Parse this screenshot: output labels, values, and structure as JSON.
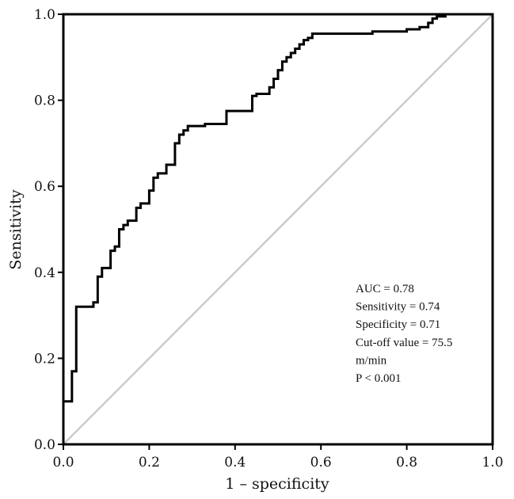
{
  "chart_data": {
    "type": "line",
    "title": "",
    "xlabel": "1 – specificity",
    "ylabel": "Sensitivity",
    "xlim": [
      0,
      1
    ],
    "ylim": [
      0,
      1
    ],
    "x_ticks": [
      "0.0",
      "0.2",
      "0.4",
      "0.6",
      "0.8",
      "1.0"
    ],
    "y_ticks": [
      "0.0",
      "0.2",
      "0.4",
      "0.6",
      "0.8",
      "1.0"
    ],
    "grid": false,
    "legend": "none",
    "series": [
      {
        "style": "step",
        "color": "#000000",
        "x": [
          0.0,
          0.0,
          0.02,
          0.02,
          0.03,
          0.03,
          0.07,
          0.07,
          0.08,
          0.08,
          0.09,
          0.09,
          0.11,
          0.11,
          0.12,
          0.12,
          0.13,
          0.13,
          0.14,
          0.14,
          0.15,
          0.15,
          0.17,
          0.17,
          0.18,
          0.18,
          0.2,
          0.2,
          0.21,
          0.21,
          0.22,
          0.22,
          0.24,
          0.24,
          0.26,
          0.26,
          0.27,
          0.27,
          0.28,
          0.28,
          0.29,
          0.29,
          0.33,
          0.33,
          0.38,
          0.38,
          0.44,
          0.44,
          0.45,
          0.45,
          0.48,
          0.48,
          0.49,
          0.49,
          0.5,
          0.5,
          0.51,
          0.51,
          0.52,
          0.52,
          0.53,
          0.53,
          0.54,
          0.54,
          0.55,
          0.55,
          0.56,
          0.56,
          0.57,
          0.57,
          0.58,
          0.58,
          0.72,
          0.72,
          0.8,
          0.8,
          0.83,
          0.83,
          0.85,
          0.85,
          0.86,
          0.86,
          0.87,
          0.87,
          0.89,
          0.89,
          1.0
        ],
        "y": [
          0.0,
          0.1,
          0.1,
          0.17,
          0.17,
          0.32,
          0.32,
          0.33,
          0.33,
          0.39,
          0.39,
          0.41,
          0.41,
          0.45,
          0.45,
          0.46,
          0.46,
          0.5,
          0.5,
          0.51,
          0.51,
          0.52,
          0.52,
          0.55,
          0.55,
          0.56,
          0.56,
          0.59,
          0.59,
          0.62,
          0.62,
          0.63,
          0.63,
          0.65,
          0.65,
          0.7,
          0.7,
          0.72,
          0.72,
          0.73,
          0.73,
          0.74,
          0.74,
          0.745,
          0.745,
          0.775,
          0.775,
          0.81,
          0.81,
          0.815,
          0.815,
          0.83,
          0.83,
          0.85,
          0.85,
          0.87,
          0.87,
          0.89,
          0.89,
          0.9,
          0.9,
          0.91,
          0.91,
          0.92,
          0.92,
          0.93,
          0.93,
          0.94,
          0.94,
          0.945,
          0.945,
          0.955,
          0.955,
          0.96,
          0.96,
          0.965,
          0.965,
          0.97,
          0.97,
          0.98,
          0.98,
          0.99,
          0.99,
          0.995,
          0.995,
          1.0,
          1.0
        ]
      },
      {
        "style": "line",
        "color": "#cccccc",
        "x": [
          0,
          1
        ],
        "y": [
          0,
          1
        ]
      }
    ],
    "annotations": [
      "AUC = 0.78",
      "Sensitivity = 0.74",
      "Specificity = 0.71",
      "Cut-off value = 75.5",
      "m/min",
      "P < 0.001"
    ]
  }
}
